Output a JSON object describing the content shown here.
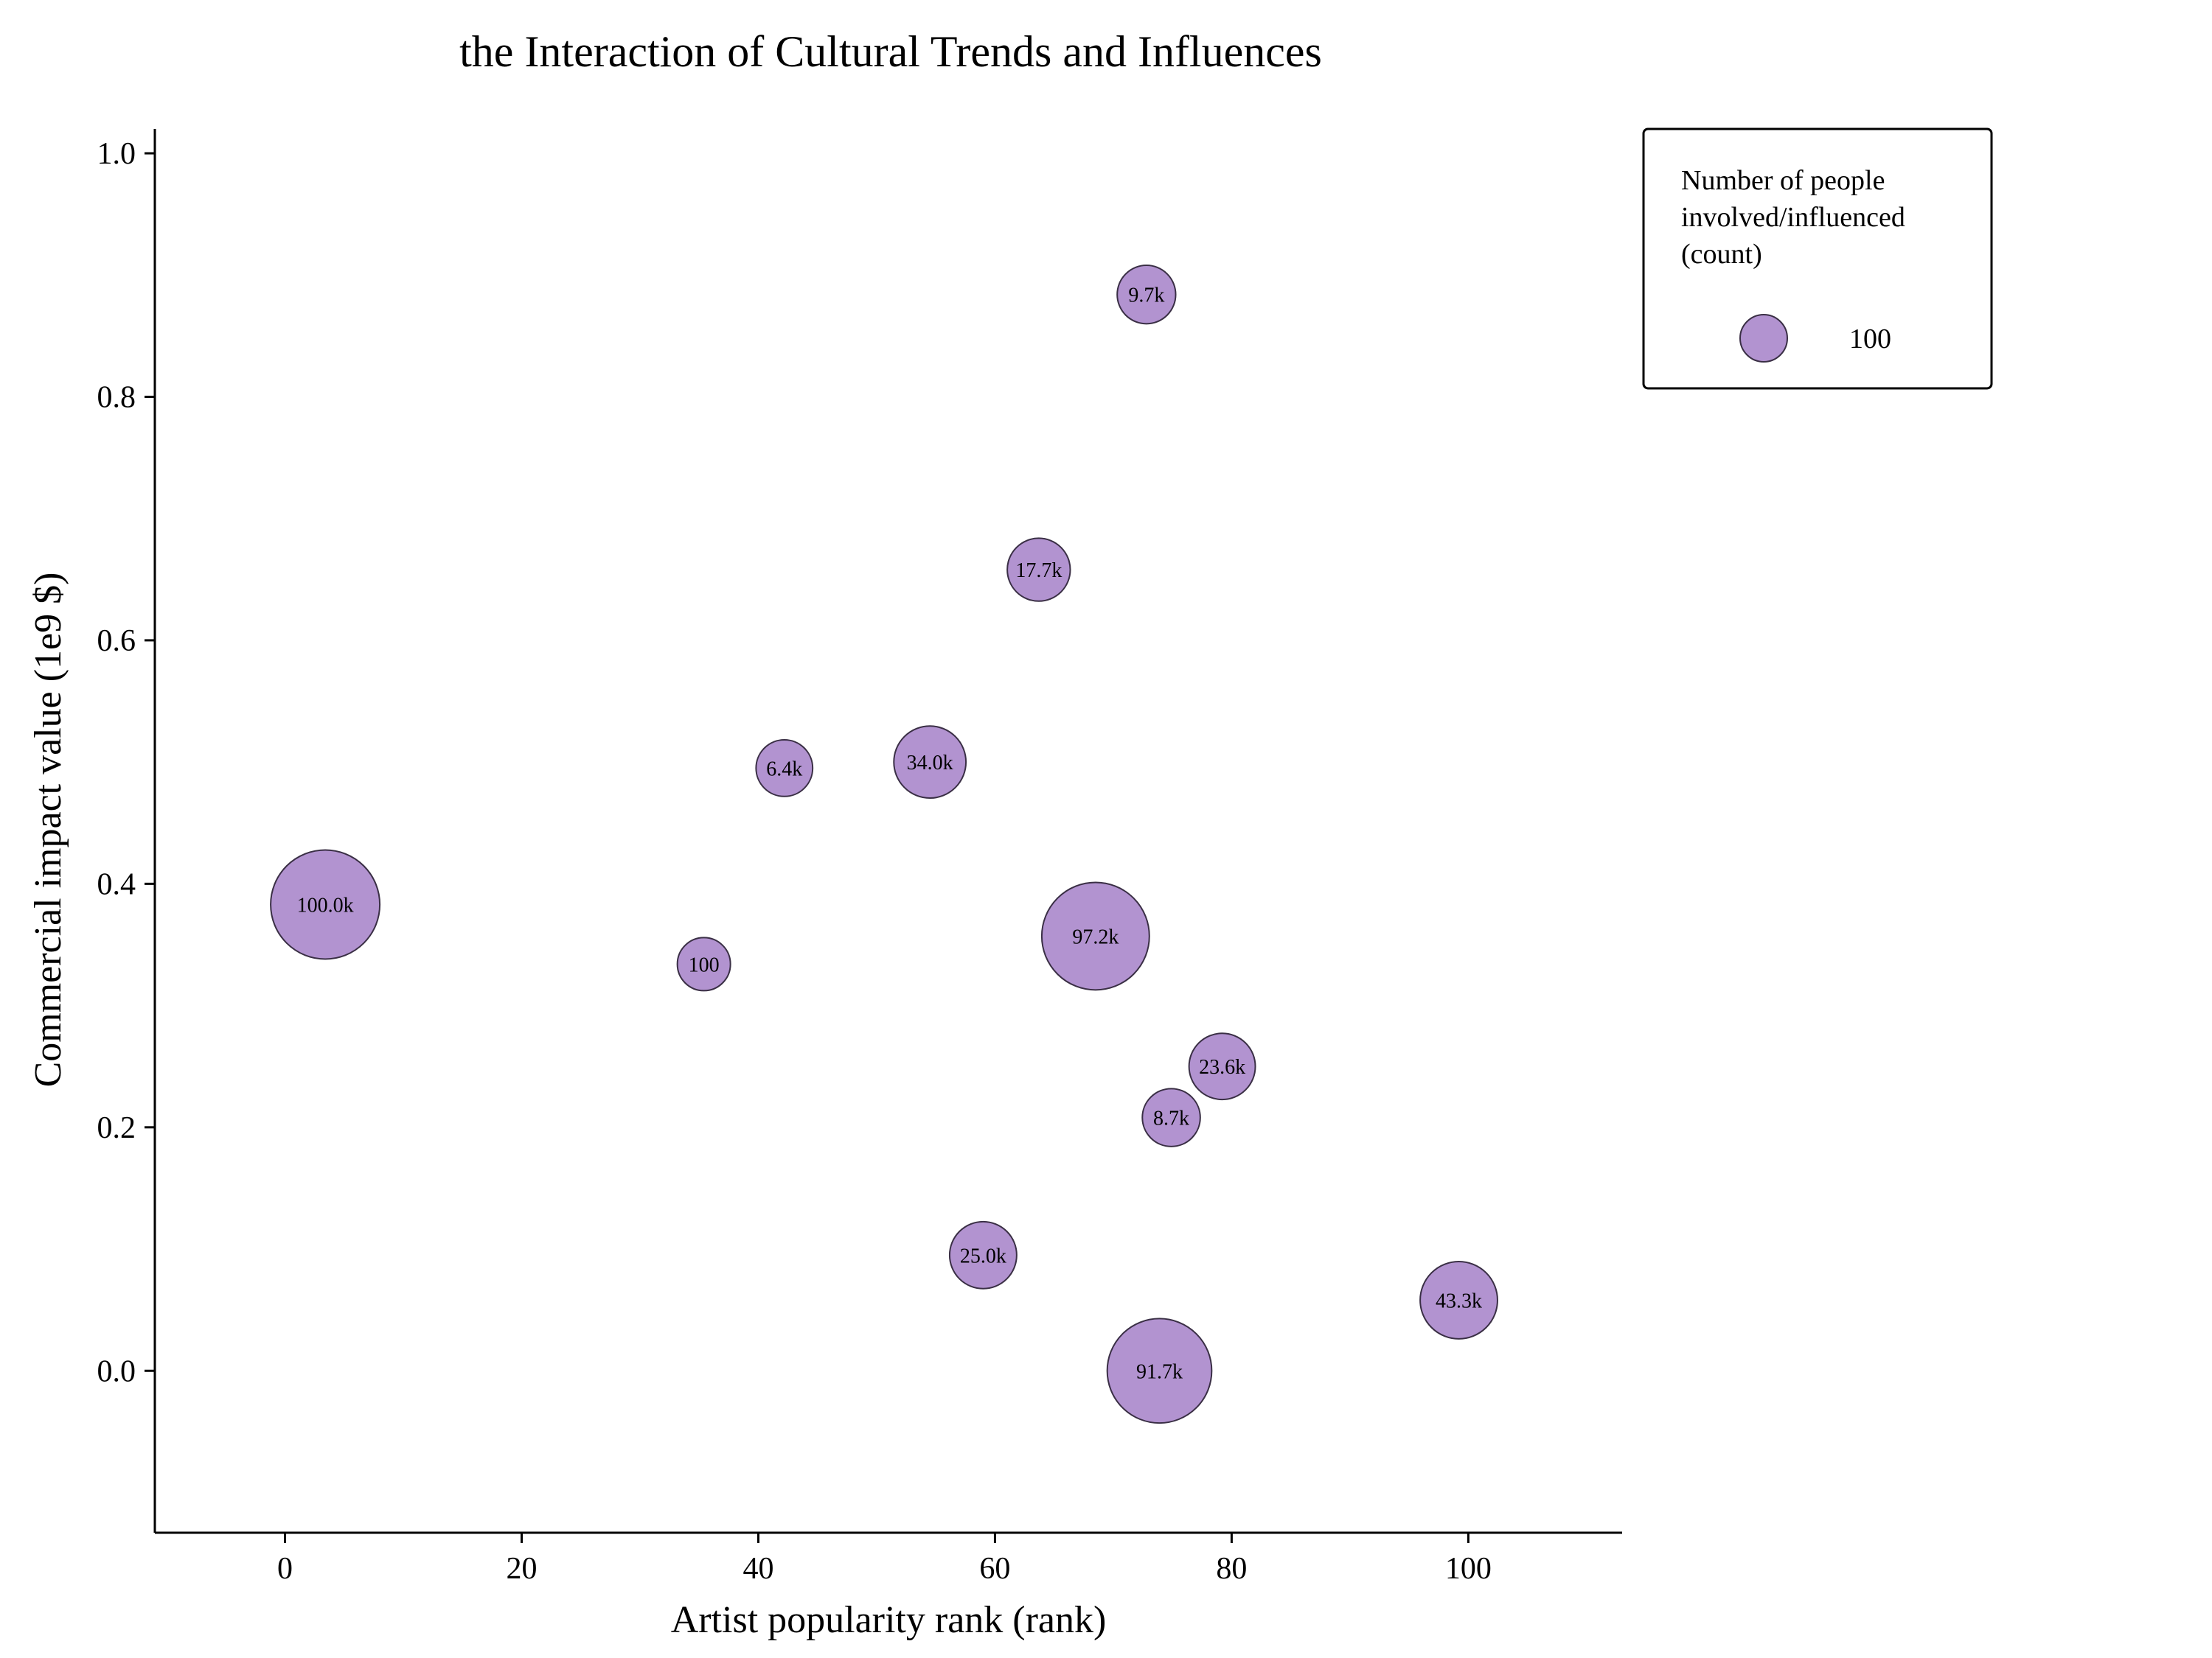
{
  "chart_data": {
    "type": "scatter",
    "title": "the Interaction of Cultural Trends and Influences",
    "xlabel": "Artist popularity rank (rank)",
    "ylabel": "Commercial impact value (1e9 $)",
    "xlim": [
      -11,
      113
    ],
    "ylim": [
      -0.133,
      1.02
    ],
    "xticks": [
      0,
      20,
      40,
      60,
      80,
      100
    ],
    "yticks": [
      0.0,
      0.2,
      0.4,
      0.6,
      0.8,
      1.0
    ],
    "xtick_labels": [
      "0",
      "20",
      "40",
      "60",
      "80",
      "100"
    ],
    "ytick_labels": [
      "0.0",
      "0.2",
      "0.4",
      "0.6",
      "0.8",
      "1.0"
    ],
    "bubble_color": "#b293d0",
    "bubble_edge_color": "#3a2f45",
    "grid": false,
    "legend": {
      "title_lines": [
        "Number of people",
        "involved/influenced",
        "(count)"
      ],
      "entry_label": "100",
      "placement": "outside-top-right"
    },
    "points": [
      {
        "x": 3.4,
        "y": 0.383,
        "size": 100000,
        "label": "100.0k"
      },
      {
        "x": 35.4,
        "y": 0.334,
        "size": 100,
        "label": "100"
      },
      {
        "x": 42.2,
        "y": 0.495,
        "size": 6400,
        "label": "6.4k"
      },
      {
        "x": 54.5,
        "y": 0.5,
        "size": 34000,
        "label": "34.0k"
      },
      {
        "x": 59.0,
        "y": 0.095,
        "size": 25000,
        "label": "25.0k"
      },
      {
        "x": 63.7,
        "y": 0.658,
        "size": 17700,
        "label": "17.7k"
      },
      {
        "x": 68.5,
        "y": 0.357,
        "size": 97200,
        "label": "97.2k"
      },
      {
        "x": 72.8,
        "y": 0.884,
        "size": 9700,
        "label": "9.7k"
      },
      {
        "x": 73.9,
        "y": 0.0,
        "size": 91700,
        "label": "91.7k"
      },
      {
        "x": 74.9,
        "y": 0.208,
        "size": 8700,
        "label": "8.7k"
      },
      {
        "x": 79.2,
        "y": 0.25,
        "size": 23600,
        "label": "23.6k"
      },
      {
        "x": 99.2,
        "y": 0.058,
        "size": 43300,
        "label": "43.3k"
      }
    ]
  }
}
